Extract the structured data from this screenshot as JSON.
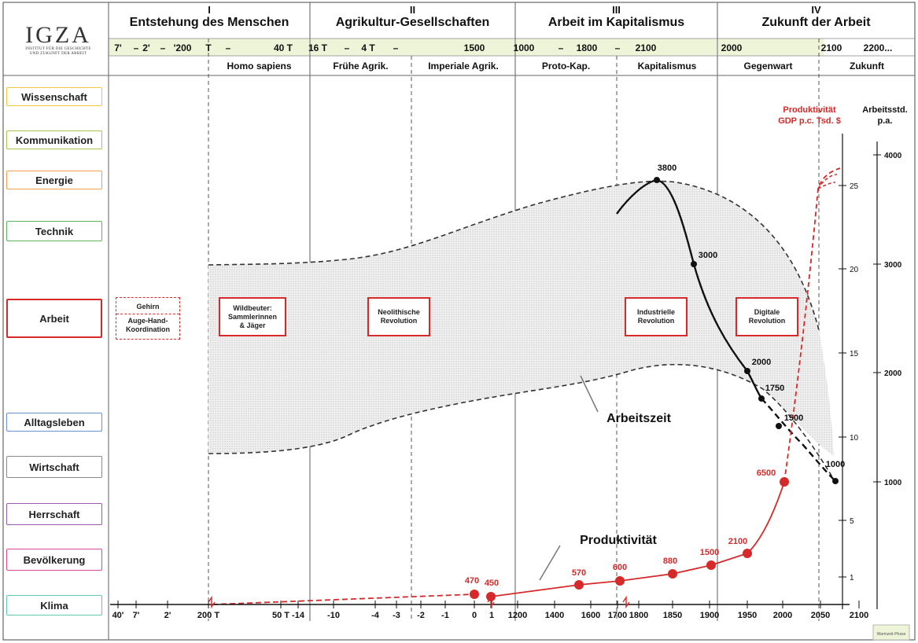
{
  "logo": {
    "title": "IGZA",
    "subtitle_line1": "INSTITUT FÜR DIE GESCHICHTE",
    "subtitle_line2": "UND ZUKUNFT DER ARBEIT"
  },
  "categories": [
    {
      "label": "Wissenschaft",
      "color": "#f2c644"
    },
    {
      "label": "Kommunikation",
      "color": "#a5c84c"
    },
    {
      "label": "Energie",
      "color": "#f0a050"
    },
    {
      "label": "Technik",
      "color": "#5bb55b"
    },
    {
      "label": "Arbeit",
      "color": "#d62a2a"
    },
    {
      "label": "Alltagsleben",
      "color": "#6e8fcf"
    },
    {
      "label": "Wirtschaft",
      "color": "#8a8a8a"
    },
    {
      "label": "Herrschaft",
      "color": "#9a5ab0"
    },
    {
      "label": "Bevölkerung",
      "color": "#d94a9a"
    },
    {
      "label": "Klima",
      "color": "#5ec7b8"
    }
  ],
  "eras": [
    {
      "numeral": "I",
      "title": "Entstehung des Menschen"
    },
    {
      "numeral": "II",
      "title": "Agrikultur-Gesellschaften"
    },
    {
      "numeral": "III",
      "title": "Arbeit im Kapitalismus"
    },
    {
      "numeral": "IV",
      "title": "Zukunft der Arbeit"
    }
  ],
  "time_row": [
    "7'",
    "–",
    "2'",
    "–",
    "'200",
    "T",
    "–",
    "40 T",
    "16 T",
    "–",
    "4 T",
    "–",
    "1500",
    "1000",
    "–",
    "1800",
    "–",
    "2100",
    "2000",
    "2100",
    "2200..."
  ],
  "sub_periods": [
    "Homo sapiens",
    "Frühe Agrik.",
    "Imperiale Agrik.",
    "Proto-Kap.",
    "Kapitalismus",
    "Gegenwart",
    "Zukunft"
  ],
  "arbeit_boxes": {
    "gehirn": "Gehirn",
    "auge_line1": "Auge-Hand-",
    "auge_line2": "Koordination",
    "b1_line1": "Wildbeuter:",
    "b1_line2": "Sammlerinnen",
    "b1_line3": "& Jäger",
    "b2_line1": "Neolithische",
    "b2_line2": "Revolution",
    "b3_line1": "Industrielle",
    "b3_line2": "Revolution",
    "b4_line1": "Digitale",
    "b4_line2": "Revolution"
  },
  "labels": {
    "arbeitszeit": "Arbeitszeit",
    "produktivitaet": "Produktivität",
    "prod_axis_line1": "Produktivität",
    "prod_axis_line2": "GDP p.c. Tsd. $",
    "hours_axis_line1": "Arbeitsstd.",
    "hours_axis_line2": "p.a.",
    "legend": "Warmzeit-Phase"
  },
  "bottom_axis_ticks": [
    "40'",
    "7'",
    "2'",
    "200 T",
    "50 T",
    "-14",
    "-10",
    "-4",
    "-3",
    "-2",
    "-1",
    "0",
    "1",
    "1200",
    "1400",
    "1600",
    "1700",
    "1800",
    "1850",
    "1900",
    "1950",
    "2000",
    "2050",
    "2100"
  ],
  "productivity_axis_ticks": [
    "25",
    "20",
    "15",
    "10",
    "5",
    "1"
  ],
  "hours_axis_ticks": [
    "4000",
    "3000",
    "2000",
    "1000"
  ],
  "colors": {
    "productivity": "#d62a2a",
    "arbeitszeit_band": "#e6e6e6",
    "warmzeit": "#eef4d8"
  },
  "chart_data": {
    "type": "line",
    "series": [
      {
        "name": "Produktivität",
        "points": [
          {
            "period": "0",
            "value": 470
          },
          {
            "period": "1",
            "value": 450
          },
          {
            "period": "1500",
            "value": 570
          },
          {
            "period": "1700",
            "value": 600
          },
          {
            "period": "1850",
            "value": 880
          },
          {
            "period": "1900",
            "value": 1500
          },
          {
            "period": "1950",
            "value": 2100
          },
          {
            "period": "2000",
            "value": 6500
          }
        ]
      },
      {
        "name": "Arbeitszeit",
        "points": [
          {
            "period": "1800",
            "value": 3800
          },
          {
            "period": "1850",
            "value": 3000
          },
          {
            "period": "1950",
            "value": 2000
          },
          {
            "period": "1975",
            "value": 1750
          },
          {
            "period": "2000",
            "value": 1500
          },
          {
            "period": "2100",
            "value": 1000
          }
        ]
      }
    ]
  }
}
